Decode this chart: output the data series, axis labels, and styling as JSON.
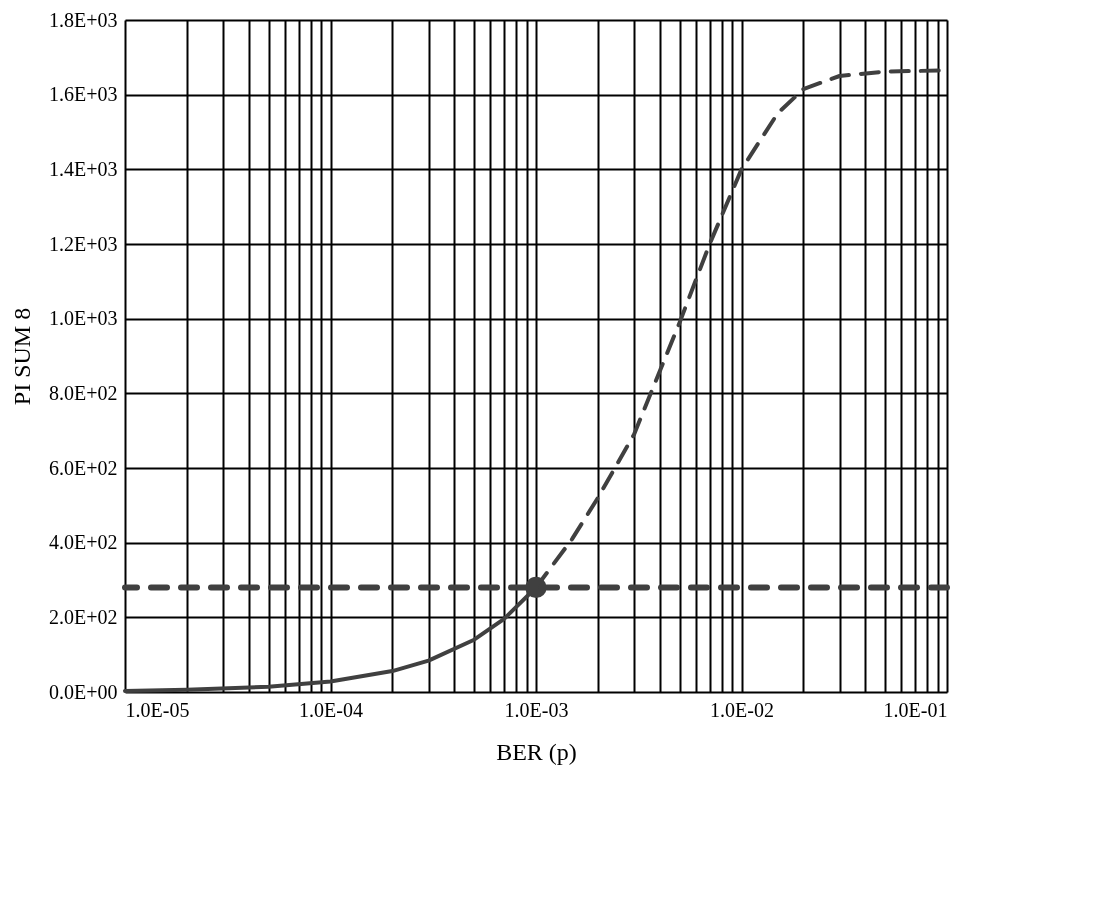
{
  "chart_data": {
    "type": "line",
    "xlabel": "BER (p)",
    "ylabel": "PI SUM 8",
    "log": "x",
    "grid": true,
    "xlim": [
      1e-05,
      0.1
    ],
    "xticks": [
      {
        "value": 1e-05,
        "label": "1.0E-05"
      },
      {
        "value": 2e-05,
        "label": null
      },
      {
        "value": 3e-05,
        "label": null
      },
      {
        "value": 4e-05,
        "label": null
      },
      {
        "value": 5e-05,
        "label": null
      },
      {
        "value": 6e-05,
        "label": null
      },
      {
        "value": 7e-05,
        "label": null
      },
      {
        "value": 8e-05,
        "label": null
      },
      {
        "value": 9e-05,
        "label": null
      },
      {
        "value": 0.0001,
        "label": "1.0E-04"
      },
      {
        "value": 0.0002,
        "label": null
      },
      {
        "value": 0.0003,
        "label": null
      },
      {
        "value": 0.0004,
        "label": null
      },
      {
        "value": 0.0005,
        "label": null
      },
      {
        "value": 0.0006,
        "label": null
      },
      {
        "value": 0.0007,
        "label": null
      },
      {
        "value": 0.0008,
        "label": null
      },
      {
        "value": 0.0009,
        "label": null
      },
      {
        "value": 0.001,
        "label": "1.0E-03"
      },
      {
        "value": 0.002,
        "label": null
      },
      {
        "value": 0.003,
        "label": null
      },
      {
        "value": 0.004,
        "label": null
      },
      {
        "value": 0.005,
        "label": null
      },
      {
        "value": 0.006,
        "label": null
      },
      {
        "value": 0.007,
        "label": null
      },
      {
        "value": 0.008,
        "label": null
      },
      {
        "value": 0.009,
        "label": null
      },
      {
        "value": 0.01,
        "label": "1.0E-02"
      },
      {
        "value": 0.02,
        "label": null
      },
      {
        "value": 0.03,
        "label": null
      },
      {
        "value": 0.04,
        "label": null
      },
      {
        "value": 0.05,
        "label": null
      },
      {
        "value": 0.06,
        "label": null
      },
      {
        "value": 0.07,
        "label": null
      },
      {
        "value": 0.08,
        "label": null
      },
      {
        "value": 0.09,
        "label": null
      },
      {
        "value": 0.1,
        "label": "1.0E-01"
      }
    ],
    "ylim": [
      0,
      1800
    ],
    "yticks": [
      {
        "value": 0,
        "label": "0.0E+00"
      },
      {
        "value": 200,
        "label": "2.0E+02"
      },
      {
        "value": 400,
        "label": "4.0E+02"
      },
      {
        "value": 600,
        "label": "6.0E+02"
      },
      {
        "value": 800,
        "label": "8.0E+02"
      },
      {
        "value": 1000,
        "label": "1.0E+03"
      },
      {
        "value": 1200,
        "label": "1.2E+03"
      },
      {
        "value": 1400,
        "label": "1.4E+03"
      },
      {
        "value": 1600,
        "label": "1.6E+03"
      },
      {
        "value": 1800,
        "label": "1.8E+03"
      }
    ],
    "series": [
      {
        "type": "line",
        "line_style": "solid",
        "color": "#404040",
        "x": [
          1e-05,
          2e-05,
          5e-05,
          0.0001,
          0.0002,
          0.0003,
          0.0005,
          0.0007,
          0.001
        ],
        "values": [
          3,
          6,
          14,
          28,
          56,
          84,
          140,
          196,
          280
        ]
      },
      {
        "type": "line",
        "line_style": "dashed",
        "color": "#404040",
        "x": [
          0.001,
          0.0015,
          0.002,
          0.003,
          0.005,
          0.007,
          0.01,
          0.015,
          0.02,
          0.03,
          0.05,
          0.1
        ],
        "values": [
          280,
          410,
          520,
          690,
          990,
          1200,
          1400,
          1550,
          1615,
          1650,
          1662,
          1665
        ]
      },
      {
        "type": "scatter",
        "marker": "circle",
        "color": "#404040",
        "x": [
          0.001
        ],
        "values": [
          280
        ]
      }
    ],
    "ref_lines": [
      {
        "axis": "y",
        "value": 280,
        "color": "#404040",
        "line_style": "dashed"
      }
    ]
  }
}
